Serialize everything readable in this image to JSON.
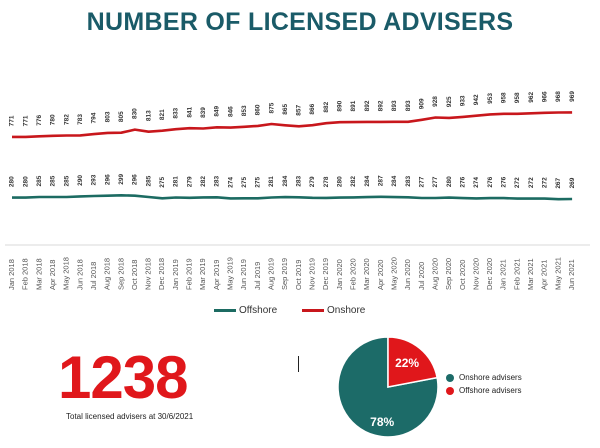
{
  "title": "NUMBER OF LICENSED ADVISERS",
  "chart_data": [
    {
      "type": "line",
      "x": [
        "Jan 2018",
        "Feb 2018",
        "Mar 2018",
        "Apr 2018",
        "May 2018",
        "Jun 2018",
        "Jul 2018",
        "Aug 2018",
        "Sep 2018",
        "Oct 2018",
        "Nov 2018",
        "Dec 2018",
        "Jan 2019",
        "Feb 2019",
        "Mar 2019",
        "Apr 2019",
        "May 2019",
        "Jun 2019",
        "Jul 2019",
        "Aug 2019",
        "Sep 2019",
        "Oct 2019",
        "Nov 2019",
        "Dec 2019",
        "Jan 2020",
        "Feb 2020",
        "Mar 2020",
        "Apr 2020",
        "May 2020",
        "Jun 2020",
        "Jul 2020",
        "Aug 2020",
        "Sep 2020",
        "Oct 2020",
        "Nov 2020",
        "Dec 2020",
        "Jan 2021",
        "Feb 2021",
        "Mar 2021",
        "Apr 2021",
        "May 2021",
        "Jun 2021"
      ],
      "series": [
        {
          "name": "Onshore",
          "color": "#c8171c",
          "values": [
            771,
            771,
            776,
            780,
            782,
            783,
            794,
            803,
            805,
            830,
            813,
            821,
            833,
            841,
            839,
            849,
            846,
            853,
            860,
            875,
            865,
            857,
            866,
            882,
            890,
            891,
            892,
            892,
            893,
            893,
            909,
            928,
            925,
            933,
            942,
            953,
            958,
            958,
            962,
            966,
            968,
            969
          ]
        },
        {
          "name": "Offshore",
          "color": "#1c6b62",
          "values": [
            280,
            280,
            285,
            285,
            285,
            290,
            293,
            296,
            299,
            296,
            285,
            275,
            281,
            279,
            282,
            283,
            274,
            275,
            275,
            281,
            284,
            283,
            279,
            278,
            280,
            282,
            284,
            287,
            284,
            283,
            277,
            277,
            280,
            276,
            274,
            276,
            276,
            272,
            272,
            272,
            267,
            269
          ]
        }
      ],
      "ylim": [
        0,
        1100
      ],
      "legend": [
        "Offshore",
        "Onshore"
      ]
    },
    {
      "type": "pie",
      "labels": [
        "Onshore advisers",
        "Offshore advisers"
      ],
      "values": [
        78,
        22
      ],
      "data_labels": [
        "78%",
        "22%"
      ],
      "colors": [
        "#1c6b68",
        "#e0171b"
      ]
    }
  ],
  "total": {
    "value": "1238",
    "caption": "Total licensed advisers at 30/6/2021"
  }
}
